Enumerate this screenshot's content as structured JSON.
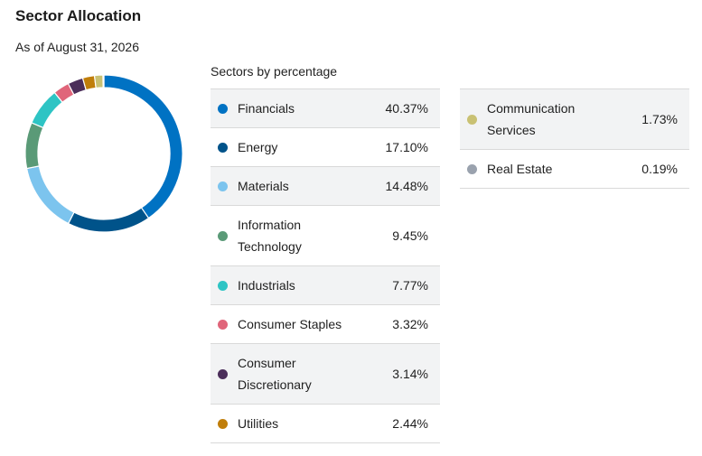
{
  "header": {
    "title": "Sector Allocation",
    "as_of": "As of August 31, 2026"
  },
  "table": {
    "heading": "Sectors by percentage"
  },
  "chart_data": {
    "type": "pie",
    "subtype": "donut",
    "title": "Sector Allocation",
    "series": [
      {
        "name": "Financials",
        "value": 40.37,
        "display": "40.37%",
        "color": "#0072c3",
        "column": 0,
        "lines": 1
      },
      {
        "name": "Energy",
        "value": 17.1,
        "display": "17.10%",
        "color": "#00538a",
        "column": 0,
        "lines": 1
      },
      {
        "name": "Materials",
        "value": 14.48,
        "display": "14.48%",
        "color": "#7cc4ee",
        "column": 0,
        "lines": 1
      },
      {
        "name": "Information Technology",
        "value": 9.45,
        "display": "9.45%",
        "color": "#5a9a77",
        "column": 0,
        "lines": 2
      },
      {
        "name": "Industrials",
        "value": 7.77,
        "display": "7.77%",
        "color": "#2ec4c4",
        "column": 0,
        "lines": 1
      },
      {
        "name": "Consumer Staples",
        "value": 3.32,
        "display": "3.32%",
        "color": "#e0657a",
        "column": 0,
        "lines": 1
      },
      {
        "name": "Consumer Discretionary",
        "value": 3.14,
        "display": "3.14%",
        "color": "#4b2e5a",
        "column": 0,
        "lines": 2
      },
      {
        "name": "Utilities",
        "value": 2.44,
        "display": "2.44%",
        "color": "#c07e0a",
        "column": 0,
        "lines": 1
      },
      {
        "name": "Communication Services",
        "value": 1.73,
        "display": "1.73%",
        "color": "#c9c173",
        "column": 1,
        "lines": 2
      },
      {
        "name": "Real Estate",
        "value": 0.19,
        "display": "0.19%",
        "color": "#9aa2ae",
        "column": 1,
        "lines": 1
      }
    ]
  }
}
